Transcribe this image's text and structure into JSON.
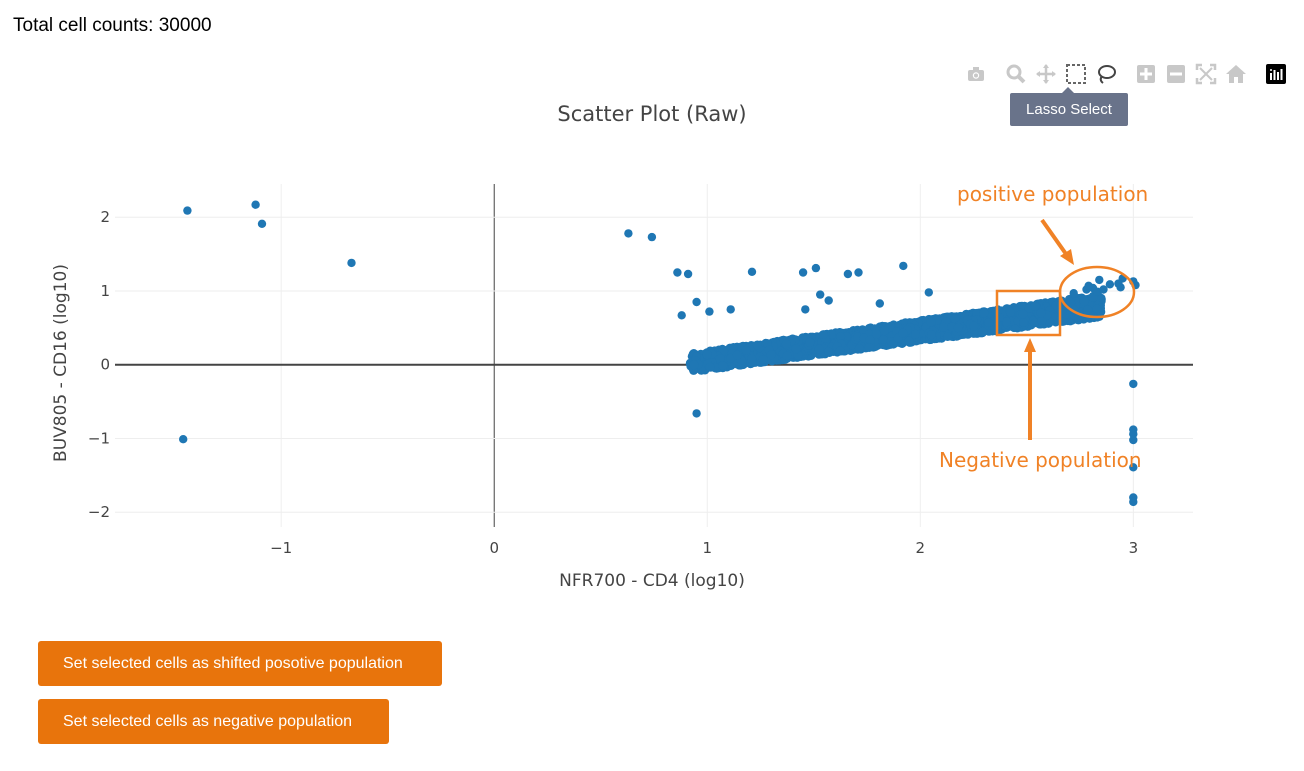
{
  "header": {
    "total_label": "Total cell counts: 30000"
  },
  "modebar": {
    "buttons": [
      "camera-icon",
      "zoom-icon",
      "pan-icon",
      "box-select-icon",
      "lasso-select-icon",
      "zoom-in-icon",
      "zoom-out-icon",
      "autoscale-icon",
      "reset-axes-icon",
      "plotly-logo-icon"
    ],
    "tooltip": "Lasso Select"
  },
  "chart_data": {
    "type": "scatter",
    "title": "Scatter Plot (Raw)",
    "xlabel": "NFR700 - CD4 (log10)",
    "ylabel": "BUV805 - CD16 (log10)",
    "xlim": [
      -1.78,
      3.28
    ],
    "ylim": [
      -2.2,
      2.45
    ],
    "xticks": [
      -1,
      0,
      1,
      2,
      3
    ],
    "yticks": [
      -2,
      -1,
      0,
      1,
      2
    ],
    "xtick_labels": [
      "−1",
      "0",
      "1",
      "2",
      "3"
    ],
    "ytick_labels": [
      "−2",
      "−1",
      "0",
      "1",
      "2"
    ],
    "grid": true,
    "marker_color": "#1f77b4",
    "dense_band": {
      "x_start": 0.92,
      "x_end": 2.85,
      "y_start_low": -0.1,
      "y_start_high": 0.15,
      "y_end_low": 0.65,
      "y_end_high": 0.95
    },
    "points": [
      {
        "x": -1.44,
        "y": 2.09
      },
      {
        "x": -1.12,
        "y": 2.17
      },
      {
        "x": -1.09,
        "y": 1.91
      },
      {
        "x": -0.67,
        "y": 1.38
      },
      {
        "x": -1.46,
        "y": -1.01
      },
      {
        "x": 0.63,
        "y": 1.78
      },
      {
        "x": 0.74,
        "y": 1.73
      },
      {
        "x": 0.86,
        "y": 1.25
      },
      {
        "x": 0.91,
        "y": 1.23
      },
      {
        "x": 0.95,
        "y": 0.85
      },
      {
        "x": 0.88,
        "y": 0.67
      },
      {
        "x": 1.01,
        "y": 0.72
      },
      {
        "x": 1.11,
        "y": 0.75
      },
      {
        "x": 1.21,
        "y": 1.26
      },
      {
        "x": 1.45,
        "y": 1.25
      },
      {
        "x": 1.51,
        "y": 1.31
      },
      {
        "x": 1.53,
        "y": 0.95
      },
      {
        "x": 1.57,
        "y": 0.87
      },
      {
        "x": 1.46,
        "y": 0.75
      },
      {
        "x": 1.66,
        "y": 1.23
      },
      {
        "x": 1.71,
        "y": 1.25
      },
      {
        "x": 1.81,
        "y": 0.83
      },
      {
        "x": 1.92,
        "y": 1.34
      },
      {
        "x": 2.04,
        "y": 0.98
      },
      {
        "x": 0.95,
        "y": -0.66
      },
      {
        "x": 2.84,
        "y": 1.15
      },
      {
        "x": 2.95,
        "y": 1.17
      },
      {
        "x": 3.0,
        "y": 1.13
      },
      {
        "x": 2.94,
        "y": 1.05
      },
      {
        "x": 3.01,
        "y": 1.08
      },
      {
        "x": 2.89,
        "y": 1.09
      },
      {
        "x": 2.93,
        "y": 1.1
      },
      {
        "x": 2.72,
        "y": 0.97
      },
      {
        "x": 2.78,
        "y": 1.02
      },
      {
        "x": 2.81,
        "y": 1.04
      },
      {
        "x": 2.83,
        "y": 0.99
      },
      {
        "x": 2.79,
        "y": 1.07
      },
      {
        "x": 2.86,
        "y": 1.02
      },
      {
        "x": 3.0,
        "y": -0.26
      },
      {
        "x": 3.0,
        "y": -0.88
      },
      {
        "x": 3.0,
        "y": -0.94
      },
      {
        "x": 3.0,
        "y": -1.02
      },
      {
        "x": 3.0,
        "y": -1.39
      },
      {
        "x": 3.0,
        "y": -1.8
      },
      {
        "x": 3.0,
        "y": -1.86
      }
    ],
    "annotations": [
      {
        "text": "positive population",
        "color": "#f08226"
      },
      {
        "text": "Negative population",
        "color": "#f08226"
      }
    ]
  },
  "buttons": {
    "shifted_positive": "Set selected cells as shifted posotive population",
    "negative": "Set selected cells as negative population"
  }
}
